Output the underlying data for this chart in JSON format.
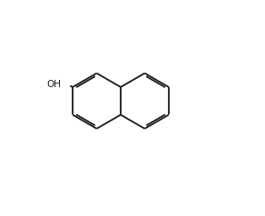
{
  "bg_color": "#ffffff",
  "figsize": [
    2.92,
    2.38
  ],
  "dpi": 100,
  "line_color": "#1a1a1a",
  "lw": 1.3,
  "font_size": 7.5
}
